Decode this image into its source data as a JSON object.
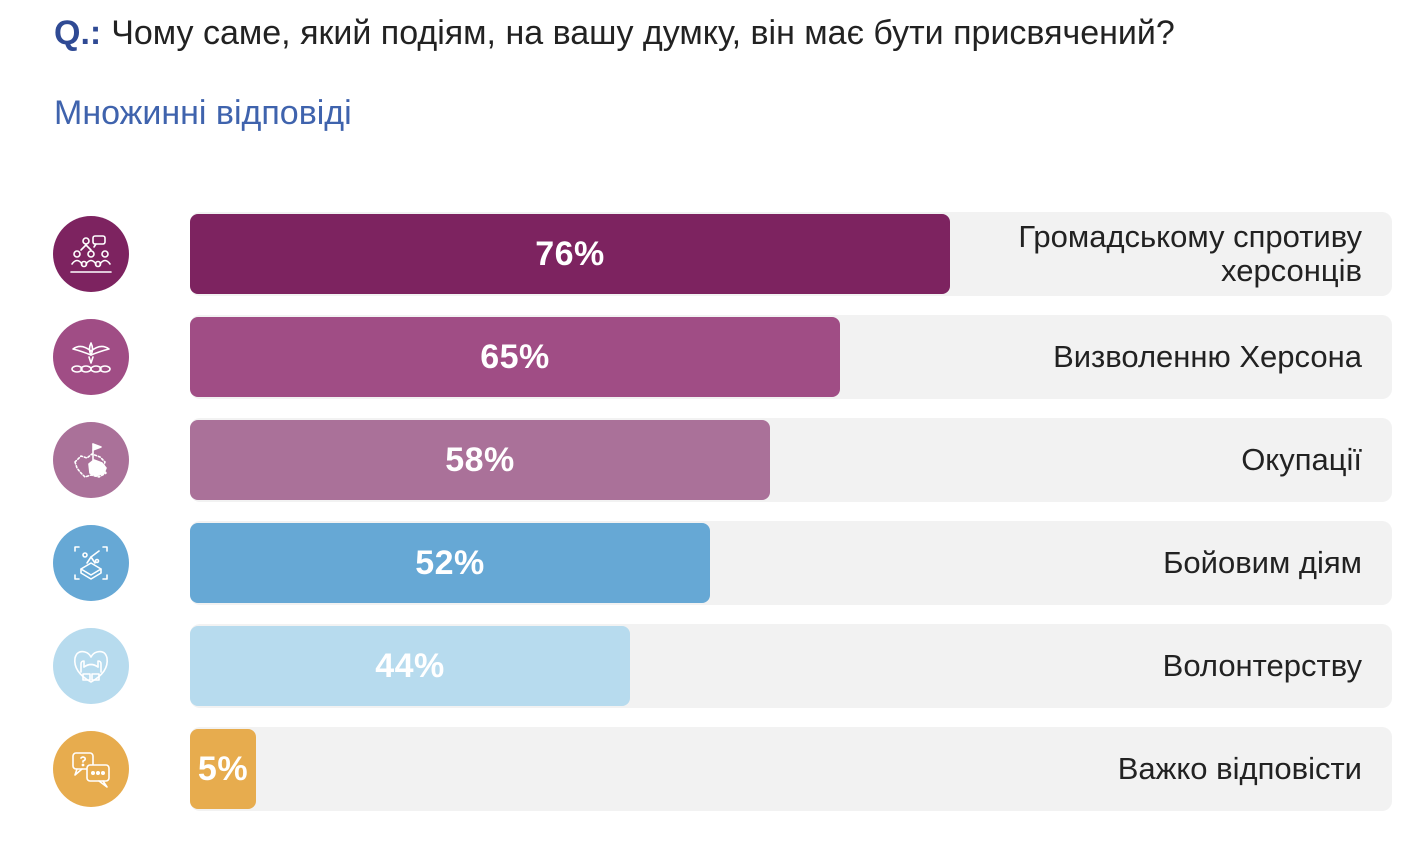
{
  "question": {
    "prefix": "Q.:",
    "text": "Чому саме, який подіям, на вашу думку, він має бути присвячений?"
  },
  "subtitle": "Множинні відповіді",
  "chart_data": {
    "type": "bar",
    "orientation": "horizontal",
    "xlim": [
      0,
      100
    ],
    "categories": [
      "Громадському спротиву херсонців",
      "Визволенню Херсона",
      "Окупації",
      "Бойовим діям",
      "Волонтерству",
      "Важко відповісти"
    ],
    "values": [
      76,
      65,
      58,
      52,
      44,
      5
    ],
    "value_labels": [
      "76%",
      "65%",
      "58%",
      "52%",
      "44%",
      "5%"
    ],
    "colors": [
      "#7d2360",
      "#a04d85",
      "#aa7199",
      "#66a8d5",
      "#b7dbee",
      "#e7ac4e"
    ],
    "icons": [
      "crowd-protest-icon",
      "liberation-dove-icon",
      "occupied-map-flag-icon",
      "battle-tank-icon",
      "volunteer-hands-heart-icon",
      "question-chat-bubbles-icon"
    ]
  }
}
